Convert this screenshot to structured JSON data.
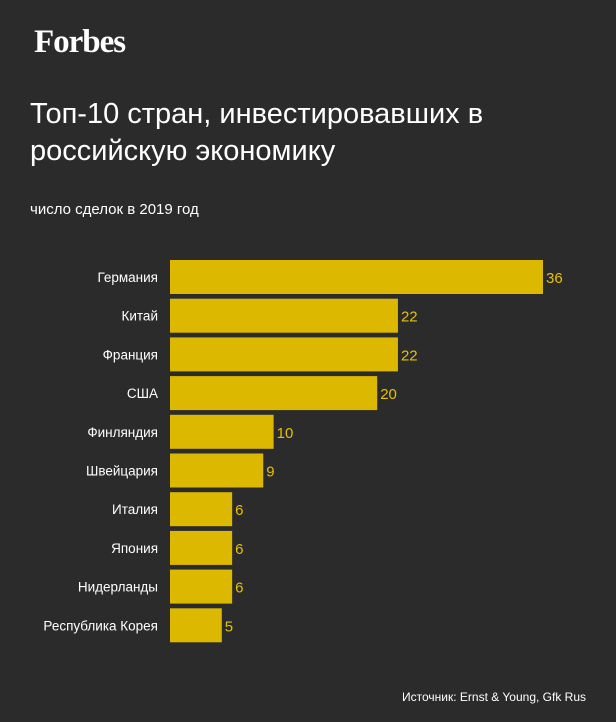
{
  "brand": "Forbes",
  "title": "Топ-10 стран, инвестировавших в российскую экономику",
  "subtitle": "число сделок в 2019 год",
  "source": "Источник: Ernst & Young, Gfk Rus",
  "colors": {
    "background": "#2b2b2b",
    "bar": "#dcb800",
    "value_label": "#e6c100",
    "text": "#ffffff"
  },
  "chart_data": {
    "type": "bar",
    "orientation": "horizontal",
    "categories": [
      "Германия",
      "Китай",
      "Франция",
      "США",
      "Финляндия",
      "Швейцария",
      "Италия",
      "Япония",
      "Нидерланды",
      "Республика Корея"
    ],
    "values": [
      36,
      22,
      22,
      20,
      10,
      9,
      6,
      6,
      6,
      5
    ],
    "title": "Топ-10 стран, инвестировавших в российскую экономику",
    "subtitle": "число сделок в 2019 год",
    "xlabel": "",
    "ylabel": "",
    "xlim": [
      0,
      36
    ],
    "grid": false,
    "legend": "none"
  }
}
